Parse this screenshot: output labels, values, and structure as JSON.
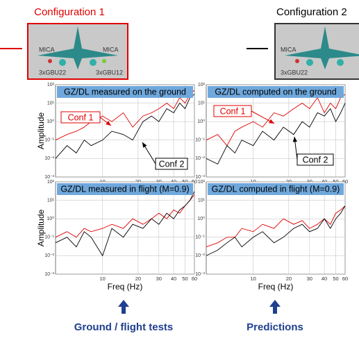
{
  "labels": {
    "config1": "Configuration 1",
    "config2": "Configuration 2",
    "mica_left_1": "MICA",
    "mica_right_1": "MICA",
    "gbu_left_1": "3xGBU22",
    "gbu_right_1": "3xGBU12",
    "mica_left_2": "MICA",
    "gbu_left_2": "3xGBU22",
    "footer_left": "Ground / flight tests",
    "footer_right": "Predictions"
  },
  "chart_data": [
    {
      "type": "line",
      "title": "GZ/DL measured on the ground",
      "ylabel": "Amplitude",
      "x": [
        4,
        5,
        6,
        7,
        8,
        10,
        12,
        15,
        18,
        22,
        26,
        30,
        35,
        40,
        45,
        50,
        55,
        60
      ],
      "series": [
        {
          "color": "#e00000",
          "values": [
            0.1,
            0.2,
            0.3,
            0.5,
            1,
            2,
            1,
            3,
            0.5,
            2,
            3,
            5,
            10,
            5,
            20,
            10,
            30,
            50
          ]
        },
        {
          "color": "#000000",
          "values": [
            0.01,
            0.05,
            0.02,
            0.1,
            0.05,
            0.1,
            0.3,
            0.2,
            0.1,
            1,
            2,
            1,
            5,
            3,
            10,
            5,
            20,
            30
          ]
        }
      ],
      "annotations": [
        {
          "text": "Conf 1",
          "color": "#e00000"
        },
        {
          "text": "Conf 2",
          "color": "#000000"
        }
      ],
      "xlim": [
        4,
        60
      ],
      "ylim": [
        0.001,
        100
      ],
      "xticks": [
        10,
        20,
        30,
        40,
        50,
        60
      ],
      "yticks": [
        {
          "value": 0.001,
          "label": "10⁻³"
        },
        {
          "value": 0.01,
          "label": "10⁻²"
        },
        {
          "value": 0.1,
          "label": "10⁻¹"
        },
        {
          "value": 1,
          "label": "10⁰"
        },
        {
          "value": 10,
          "label": "10¹"
        },
        {
          "value": 100,
          "label": "10²"
        }
      ]
    },
    {
      "type": "line",
      "title": "GZ/DL computed on the ground",
      "x": [
        4,
        5,
        6,
        7,
        8,
        10,
        12,
        15,
        18,
        22,
        26,
        30,
        35,
        40,
        45,
        50,
        55,
        60
      ],
      "series": [
        {
          "color": "#e00000",
          "values": [
            0.1,
            0.2,
            0.05,
            0.3,
            0.5,
            1,
            0.5,
            3,
            2,
            5,
            10,
            5,
            20,
            3,
            10,
            5,
            20,
            30
          ]
        },
        {
          "color": "#000000",
          "values": [
            0.01,
            0.005,
            0.05,
            0.02,
            0.1,
            0.05,
            0.3,
            0.1,
            0.5,
            0.2,
            1,
            0.5,
            3,
            2,
            5,
            1,
            3,
            10
          ]
        }
      ],
      "annotations": [
        {
          "text": "Conf 1",
          "color": "#e00000"
        },
        {
          "text": "Conf 2",
          "color": "#000000"
        }
      ],
      "xlim": [
        4,
        60
      ],
      "ylim": [
        0.001,
        100
      ],
      "xticks": [
        10,
        20,
        30,
        40,
        50,
        60
      ],
      "yticks": [
        {
          "value": 0.001,
          "label": "10⁻³"
        },
        {
          "value": 0.01,
          "label": "10⁻²"
        },
        {
          "value": 0.1,
          "label": "10⁻¹"
        },
        {
          "value": 1,
          "label": "10⁰"
        },
        {
          "value": 10,
          "label": "10¹"
        },
        {
          "value": 100,
          "label": "10²"
        }
      ]
    },
    {
      "type": "line",
      "title": "GZ/DL measured in flight (M=0.9)",
      "ylabel": "Amplitude",
      "xlabel": "Freq (Hz)",
      "x": [
        4,
        5,
        6,
        7,
        8,
        10,
        12,
        15,
        18,
        22,
        26,
        30,
        35,
        40,
        45,
        50,
        55,
        60
      ],
      "series": [
        {
          "color": "#e00000",
          "values": [
            0.1,
            0.2,
            0.1,
            0.3,
            0.2,
            0.3,
            0.5,
            0.3,
            1,
            0.5,
            1,
            2,
            1,
            3,
            2,
            5,
            10,
            20
          ]
        },
        {
          "color": "#000000",
          "values": [
            0.05,
            0.1,
            0.03,
            0.2,
            0.1,
            0.01,
            0.3,
            0.1,
            0.5,
            0.3,
            1,
            0.5,
            2,
            1,
            3,
            5,
            10,
            30
          ]
        }
      ],
      "xlim": [
        4,
        60
      ],
      "ylim": [
        0.001,
        100
      ],
      "xticks": [
        10,
        20,
        30,
        40,
        50,
        60
      ],
      "yticks": [
        {
          "value": 0.001,
          "label": "10⁻³"
        },
        {
          "value": 0.01,
          "label": "10⁻²"
        },
        {
          "value": 0.1,
          "label": "10⁻¹"
        },
        {
          "value": 1,
          "label": "10⁰"
        },
        {
          "value": 10,
          "label": "10¹"
        },
        {
          "value": 100,
          "label": "10²"
        }
      ]
    },
    {
      "type": "line",
      "title": "GZ/DL computed in flight (M=0.9)",
      "xlabel": "Freq (Hz)",
      "x": [
        4,
        5,
        6,
        7,
        8,
        10,
        12,
        15,
        18,
        22,
        26,
        30,
        35,
        40,
        45,
        50,
        55,
        60
      ],
      "series": [
        {
          "color": "#e00000",
          "values": [
            0.03,
            0.05,
            0.1,
            0.1,
            0.3,
            0.2,
            0.5,
            0.3,
            1,
            0.5,
            0.8,
            0.3,
            0.5,
            1,
            0.5,
            2,
            3,
            5
          ]
        },
        {
          "color": "#000000",
          "values": [
            0.01,
            0.02,
            0.05,
            0.1,
            0.03,
            0.1,
            0.2,
            0.05,
            0.1,
            0.3,
            0.5,
            0.2,
            0.3,
            1,
            0.3,
            1,
            2,
            5
          ]
        }
      ],
      "xlim": [
        4,
        60
      ],
      "ylim": [
        0.001,
        100
      ],
      "xticks": [
        10,
        20,
        30,
        40,
        50,
        60
      ],
      "yticks": [
        {
          "value": 0.001,
          "label": "10⁻³"
        },
        {
          "value": 0.01,
          "label": "10⁻²"
        },
        {
          "value": 0.1,
          "label": "10⁻¹"
        },
        {
          "value": 1,
          "label": "10⁰"
        },
        {
          "value": 10,
          "label": "10¹"
        },
        {
          "value": 100,
          "label": "10²"
        }
      ]
    }
  ]
}
